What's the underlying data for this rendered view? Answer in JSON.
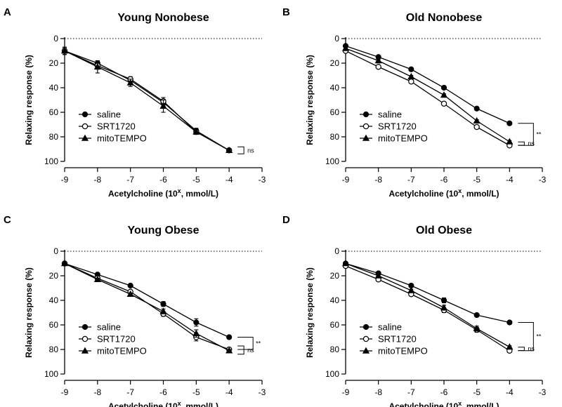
{
  "figure": {
    "legend_labels": [
      "saline",
      "SRT1720",
      "mitoTEMPO"
    ],
    "xlabel_prefix": "Acetylcholine (10",
    "xlabel_superscript": "x",
    "xlabel_suffix": ", mmol/L)",
    "ylabel": "Relaxing response (%)"
  },
  "chart_data": [
    {
      "type": "line",
      "panel_letter": "A",
      "title": "Young Nonobese",
      "xlim": [
        -9,
        -3
      ],
      "ylim": [
        0,
        100
      ],
      "y_inverted": true,
      "xticks": [
        -9,
        -8,
        -7,
        -6,
        -5,
        -4,
        -3
      ],
      "yticks": [
        0,
        20,
        40,
        60,
        80,
        100
      ],
      "x": [
        -9,
        -8,
        -7,
        -6,
        -5,
        -4
      ],
      "series": [
        {
          "name": "saline",
          "marker": "filled-circle",
          "values": [
            10,
            20,
            34,
            52,
            75,
            91
          ],
          "errors": [
            2,
            2,
            2,
            2,
            2,
            1
          ]
        },
        {
          "name": "SRT1720",
          "marker": "open-circle",
          "values": [
            10,
            22,
            33,
            51,
            76,
            91
          ],
          "errors": [
            3,
            3,
            2,
            3,
            2,
            1
          ]
        },
        {
          "name": "mitoTEMPO",
          "marker": "filled-triangle",
          "values": [
            10,
            23,
            36,
            55,
            76,
            91
          ],
          "errors": [
            3,
            5,
            3,
            5,
            2,
            1
          ]
        }
      ],
      "legend_position": "middle-left",
      "annotations": [
        {
          "label": "ns",
          "between": [
            "SRT1720",
            "mitoTEMPO"
          ]
        }
      ]
    },
    {
      "type": "line",
      "panel_letter": "B",
      "title": "Old Nonobese",
      "xlim": [
        -9,
        -3
      ],
      "ylim": [
        0,
        100
      ],
      "y_inverted": true,
      "xticks": [
        -9,
        -8,
        -7,
        -6,
        -5,
        -4,
        -3
      ],
      "yticks": [
        0,
        20,
        40,
        60,
        80,
        100
      ],
      "x": [
        -9,
        -8,
        -7,
        -6,
        -5,
        -4
      ],
      "series": [
        {
          "name": "saline",
          "marker": "filled-circle",
          "values": [
            6,
            15,
            25,
            40,
            57,
            69
          ],
          "errors": [
            1,
            1,
            1,
            1,
            1,
            1
          ]
        },
        {
          "name": "SRT1720",
          "marker": "open-circle",
          "values": [
            10,
            23,
            35,
            53,
            72,
            87
          ],
          "errors": [
            1,
            1,
            1,
            1,
            1,
            1
          ]
        },
        {
          "name": "mitoTEMPO",
          "marker": "filled-triangle",
          "values": [
            8,
            18,
            31,
            46,
            67,
            84
          ],
          "errors": [
            1,
            1,
            1,
            1,
            1,
            1
          ]
        }
      ],
      "legend_position": "middle-left",
      "annotations": [
        {
          "label": "ns",
          "between": [
            "SRT1720",
            "mitoTEMPO"
          ]
        },
        {
          "label": "**",
          "between": [
            "saline",
            "SRT1720"
          ]
        }
      ]
    },
    {
      "type": "line",
      "panel_letter": "C",
      "title": "Young Obese",
      "xlim": [
        -9,
        -3
      ],
      "ylim": [
        0,
        100
      ],
      "y_inverted": true,
      "xticks": [
        -9,
        -8,
        -7,
        -6,
        -5,
        -4,
        -3
      ],
      "yticks": [
        0,
        20,
        40,
        60,
        80,
        100
      ],
      "x": [
        -9,
        -8,
        -7,
        -6,
        -5,
        -4
      ],
      "series": [
        {
          "name": "saline",
          "marker": "filled-circle",
          "values": [
            10,
            19,
            28,
            43,
            58,
            70
          ],
          "errors": [
            1,
            1,
            1,
            2,
            3,
            1
          ]
        },
        {
          "name": "SRT1720",
          "marker": "open-circle",
          "values": [
            10,
            22,
            33,
            51,
            70,
            80
          ],
          "errors": [
            1,
            1,
            1,
            2,
            3,
            1
          ]
        },
        {
          "name": "mitoTEMPO",
          "marker": "filled-triangle",
          "values": [
            10,
            23,
            35,
            49,
            67,
            81
          ],
          "errors": [
            1,
            1,
            1,
            2,
            3,
            1
          ]
        }
      ],
      "legend_position": "middle-left",
      "annotations": [
        {
          "label": "ns",
          "between": [
            "SRT1720",
            "mitoTEMPO"
          ]
        },
        {
          "label": "**",
          "between": [
            "saline",
            "SRT1720"
          ]
        }
      ]
    },
    {
      "type": "line",
      "panel_letter": "D",
      "title": "Old Obese",
      "xlim": [
        -9,
        -3
      ],
      "ylim": [
        0,
        100
      ],
      "y_inverted": true,
      "xticks": [
        -9,
        -8,
        -7,
        -6,
        -5,
        -4,
        -3
      ],
      "yticks": [
        0,
        20,
        40,
        60,
        80,
        100
      ],
      "x": [
        -9,
        -8,
        -7,
        -6,
        -5,
        -4
      ],
      "series": [
        {
          "name": "saline",
          "marker": "filled-circle",
          "values": [
            10,
            18,
            28,
            40,
            52,
            58
          ],
          "errors": [
            1,
            1,
            1,
            2,
            1,
            1
          ]
        },
        {
          "name": "SRT1720",
          "marker": "open-circle",
          "values": [
            12,
            23,
            35,
            48,
            64,
            81
          ],
          "errors": [
            1,
            1,
            1,
            2,
            2,
            1
          ]
        },
        {
          "name": "mitoTEMPO",
          "marker": "filled-triangle",
          "values": [
            10,
            20,
            32,
            46,
            63,
            78
          ],
          "errors": [
            1,
            1,
            1,
            2,
            2,
            1
          ]
        }
      ],
      "legend_position": "middle-left",
      "annotations": [
        {
          "label": "ns",
          "between": [
            "SRT1720",
            "mitoTEMPO"
          ]
        },
        {
          "label": "**",
          "between": [
            "saline",
            "SRT1720"
          ]
        }
      ]
    }
  ]
}
